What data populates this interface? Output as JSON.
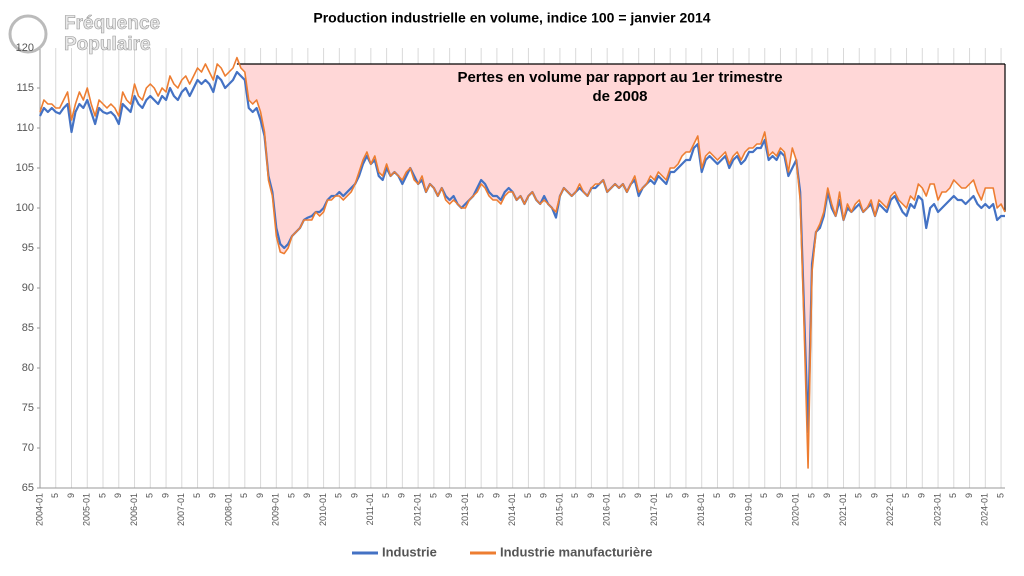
{
  "chart_data": {
    "type": "line",
    "title": "Production industrielle en volume, indice 100 = janvier 2014",
    "logo": [
      "Fréquence",
      "Populaire"
    ],
    "annotation": [
      "Pertes en volume par rapport au 1er trimestre",
      "de 2008"
    ],
    "reference_value": 118,
    "categories": [
      "2004-01",
      null,
      null,
      null,
      "5",
      null,
      null,
      null,
      "9",
      null,
      null,
      null,
      "2005-01",
      null,
      null,
      null,
      "5",
      null,
      null,
      null,
      "9",
      null,
      null,
      null,
      "2006-01",
      null,
      null,
      null,
      "5",
      null,
      null,
      null,
      "9",
      null,
      null,
      null,
      "2007-01",
      null,
      null,
      null,
      "5",
      null,
      null,
      null,
      "9",
      null,
      null,
      null,
      "2008-01",
      null,
      null,
      null,
      "5",
      null,
      null,
      null,
      "9",
      null,
      null,
      null,
      "2009-01",
      null,
      null,
      null,
      "5",
      null,
      null,
      null,
      "9",
      null,
      null,
      null,
      "2010-01",
      null,
      null,
      null,
      "5",
      null,
      null,
      null,
      "9",
      null,
      null,
      null,
      "2011-01",
      null,
      null,
      null,
      "5",
      null,
      null,
      null,
      "9",
      null,
      null,
      null,
      "2012-01",
      null,
      null,
      null,
      "5",
      null,
      null,
      null,
      "9",
      null,
      null,
      null,
      "2013-01",
      null,
      null,
      null,
      "5",
      null,
      null,
      null,
      "9",
      null,
      null,
      null,
      "2014-01",
      null,
      null,
      null,
      "5",
      null,
      null,
      null,
      "9",
      null,
      null,
      null,
      "2015-01",
      null,
      null,
      null,
      "5",
      null,
      null,
      null,
      "9",
      null,
      null,
      null,
      "2016-01",
      null,
      null,
      null,
      "5",
      null,
      null,
      null,
      "9",
      null,
      null,
      null,
      "2017-01",
      null,
      null,
      null,
      "5",
      null,
      null,
      null,
      "9",
      null,
      null,
      null,
      "2018-01",
      null,
      null,
      null,
      "5",
      null,
      null,
      null,
      "9",
      null,
      null,
      null,
      "2019-01",
      null,
      null,
      null,
      "5",
      null,
      null,
      null,
      "9",
      null,
      null,
      null,
      "2020-01",
      null,
      null,
      null,
      "5",
      null,
      null,
      null,
      "9",
      null,
      null,
      null,
      "2021-01",
      null,
      null,
      null,
      "5",
      null,
      null,
      null,
      "9",
      null,
      null,
      null,
      "2022-01",
      null,
      null,
      null,
      "5",
      null,
      null,
      null,
      "9",
      null,
      null,
      null,
      "2023-01",
      null,
      null,
      null,
      "5",
      null,
      null,
      null,
      "9",
      null,
      null,
      null,
      "2024-01",
      null,
      null,
      null,
      "5",
      null
    ],
    "series": [
      {
        "name": "Industrie",
        "color": "#4472c4",
        "values": [
          111.5,
          112.5,
          112,
          112.5,
          112,
          111.8,
          112.5,
          113,
          109.5,
          112,
          113,
          112.5,
          113.5,
          112,
          110.5,
          112.5,
          112,
          111.8,
          112,
          111.5,
          110.5,
          113,
          112.5,
          112,
          114,
          113,
          112.5,
          113.5,
          114,
          113.5,
          113,
          114,
          113.5,
          115,
          114,
          113.5,
          114.5,
          115,
          114,
          115,
          116,
          115.5,
          116,
          115.5,
          114.5,
          116.5,
          116,
          115,
          115.5,
          116,
          117,
          116.5,
          116,
          112.5,
          112,
          112.5,
          111,
          109,
          104,
          102,
          97.5,
          95.5,
          95,
          95.5,
          96.5,
          97,
          97.5,
          98.5,
          98.8,
          99,
          99.5,
          99.5,
          100,
          101,
          101.5,
          101.5,
          102,
          101.5,
          102,
          102.5,
          103,
          104,
          105.5,
          106.5,
          105.5,
          106,
          104,
          103.5,
          105,
          104,
          104.5,
          104,
          103,
          104,
          105,
          104,
          103,
          103.5,
          102,
          103,
          102.5,
          101.5,
          102.5,
          101.5,
          101,
          101.5,
          100.5,
          100,
          100.5,
          101,
          101.5,
          102.5,
          103.5,
          103,
          102,
          101.5,
          101.5,
          101,
          102,
          102.5,
          102,
          101,
          101.5,
          100.5,
          101.5,
          102,
          101,
          100.5,
          101.5,
          100.5,
          100,
          98.8,
          101.5,
          102.5,
          102,
          101.5,
          102,
          102.5,
          102,
          101.5,
          102.5,
          102.5,
          103,
          103.5,
          102,
          102.5,
          103,
          102.5,
          103,
          102,
          103,
          103.5,
          101.5,
          102.5,
          103,
          103.5,
          103,
          104,
          103.5,
          103,
          104.5,
          104.5,
          105,
          105.5,
          106,
          106,
          107.5,
          108,
          104.5,
          106,
          106.5,
          106,
          105.5,
          106,
          106.5,
          105,
          106,
          106.5,
          105.5,
          106,
          107,
          107,
          107.5,
          107.5,
          108.5,
          106,
          106.5,
          106,
          107,
          106.5,
          104,
          105,
          106,
          102,
          87,
          72,
          93,
          97,
          97.5,
          99,
          102,
          100,
          99,
          101,
          98.5,
          100,
          99.5,
          100,
          100.5,
          99.5,
          100,
          100.5,
          99,
          100.5,
          100,
          99.5,
          101,
          101.5,
          100.5,
          99.5,
          99,
          100.5,
          100,
          101.5,
          101,
          97.5,
          100,
          100.5,
          99.5,
          100,
          100.5,
          101,
          101.5,
          101,
          101,
          100.5,
          101,
          101.5,
          100.5,
          100,
          100.5,
          100,
          100.5,
          98.5,
          99,
          99
        ]
      },
      {
        "name": "Industrie manufacturière",
        "color": "#ed7d31",
        "values": [
          112,
          113.5,
          113,
          113,
          112.5,
          112.5,
          113.5,
          114.5,
          111,
          113,
          114.5,
          113.5,
          115,
          113,
          111.5,
          113.5,
          113,
          112.5,
          113,
          112.5,
          111.5,
          114.5,
          113.5,
          113,
          115.5,
          114,
          113.5,
          115,
          115.5,
          115,
          114,
          115,
          114.5,
          116.5,
          115.5,
          115,
          116,
          116.5,
          115.5,
          116.5,
          117.5,
          117,
          118,
          117,
          116,
          118,
          117.5,
          116.5,
          117,
          117.5,
          118.8,
          117.5,
          117,
          113.5,
          113,
          113.5,
          112,
          109.5,
          103.5,
          101.5,
          96.5,
          94.5,
          94.3,
          95,
          96.5,
          97,
          97.5,
          98.5,
          98.5,
          98.5,
          99.5,
          99,
          99.5,
          101,
          101,
          101.5,
          101.5,
          101,
          101.5,
          102,
          103,
          104.5,
          106,
          107,
          105.5,
          106.5,
          104.5,
          104,
          105.5,
          104,
          104.5,
          104,
          103.5,
          104.5,
          105,
          103.5,
          103,
          104,
          102,
          103,
          102.5,
          101.5,
          102.5,
          101,
          100.5,
          101,
          100.5,
          100,
          100,
          101,
          101.5,
          102,
          103,
          102.5,
          101.5,
          101,
          101,
          100.5,
          101.5,
          102,
          102,
          101,
          101.5,
          100.5,
          101.5,
          102,
          101,
          100.5,
          101,
          100.5,
          100,
          99.5,
          101.5,
          102.5,
          102,
          101.5,
          102,
          103,
          102,
          101.5,
          102.5,
          103,
          103,
          103.5,
          102,
          102.5,
          103,
          102.5,
          103,
          102,
          103,
          104,
          102,
          102.5,
          103,
          104,
          103.5,
          104.5,
          104,
          103.5,
          105,
          105,
          105.5,
          106.5,
          107,
          107,
          108,
          109,
          105,
          106.5,
          107,
          106.5,
          106,
          106.5,
          107,
          105.5,
          106.5,
          107,
          106,
          107,
          107.5,
          107.5,
          108,
          108,
          109.5,
          106.5,
          107,
          106.5,
          107.5,
          107,
          104.5,
          107.5,
          106,
          101,
          85,
          67.5,
          92,
          97,
          98,
          99.5,
          102.5,
          100.5,
          99,
          102,
          98.5,
          100.5,
          99.5,
          100.5,
          101,
          99.5,
          100,
          101,
          99,
          101,
          100.5,
          100,
          101.5,
          102,
          101,
          100.5,
          100,
          101.5,
          101,
          103,
          102.5,
          101.5,
          103,
          103,
          101,
          102,
          102,
          102.5,
          103.5,
          103,
          102.5,
          102.5,
          103,
          103.5,
          102,
          101,
          102.5,
          102.5,
          102.5,
          100,
          100.5,
          99.5
        ]
      }
    ],
    "ylim": [
      65,
      120
    ],
    "yticks": [
      65,
      70,
      75,
      80,
      85,
      90,
      95,
      100,
      105,
      110,
      115,
      120
    ],
    "grid": true,
    "shade_color": "#ffd7d7"
  }
}
